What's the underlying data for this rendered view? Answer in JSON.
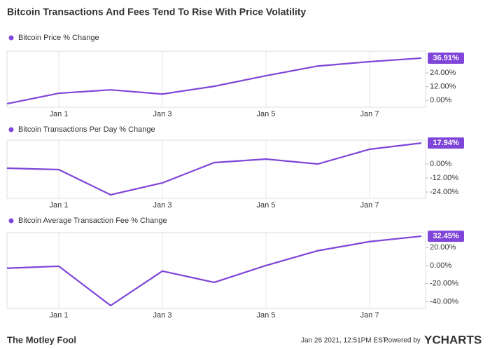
{
  "title": "Bitcoin Transactions And Fees Tend To Rise With Price Volatility",
  "chart_data": [
    {
      "type": "line",
      "categories": [
        null,
        "Jan 1",
        null,
        "Jan 3",
        null,
        "Jan 5",
        null,
        "Jan 7",
        null
      ],
      "series": [
        {
          "name": "Bitcoin Price % Change",
          "color": "#7f45d8",
          "values": [
            -3,
            6.2,
            9.2,
            5.5,
            12.3,
            21.5,
            30,
            33.8,
            36.91
          ],
          "value_labels": [
            null,
            null,
            null,
            null,
            null,
            null,
            null,
            null,
            "36.91%"
          ]
        }
      ],
      "ylim": [
        -6,
        43
      ],
      "yticks": [
        {
          "value": 0,
          "label": "0.00%"
        },
        {
          "value": 12,
          "label": "12.00%"
        },
        {
          "value": 24,
          "label": "24.00%"
        }
      ]
    },
    {
      "type": "line",
      "categories": [
        null,
        "Jan 1",
        null,
        "Jan 3",
        null,
        "Jan 5",
        null,
        "Jan 7",
        null
      ],
      "series": [
        {
          "name": "Bitcoin Transactions Per Day % Change",
          "color": "#7f45d8",
          "values": [
            -3.6,
            -4.8,
            -26.4,
            -16.2,
            1.2,
            4.2,
            0,
            12.6,
            17.94
          ],
          "value_labels": [
            null,
            null,
            null,
            null,
            null,
            null,
            null,
            null,
            "17.94%"
          ]
        }
      ],
      "ylim": [
        -29.4,
        20.4
      ],
      "yticks": [
        {
          "value": 0,
          "label": "0.00%"
        },
        {
          "value": -12,
          "label": "-12.00%"
        },
        {
          "value": -24,
          "label": "-24.00%"
        }
      ]
    },
    {
      "type": "line",
      "categories": [
        null,
        "Jan 1",
        null,
        "Jan 3",
        null,
        "Jan 5",
        null,
        "Jan 7",
        null
      ],
      "series": [
        {
          "name": "Bitcoin Average Transaction Fee % Change",
          "color": "#7f45d8",
          "values": [
            -3,
            -0.8,
            -44.4,
            -6.2,
            -18.7,
            0,
            16.4,
            26.5,
            32.45
          ],
          "value_labels": [
            null,
            null,
            null,
            null,
            null,
            null,
            null,
            null,
            "32.45%"
          ]
        }
      ],
      "ylim": [
        -47.5,
        36.4
      ],
      "yticks": [
        {
          "value": 20,
          "label": "20.00%"
        },
        {
          "value": 0,
          "label": "0.00%"
        },
        {
          "value": -20,
          "label": "-20.00%"
        },
        {
          "value": -40,
          "label": "-40.00%"
        }
      ]
    }
  ],
  "footer": {
    "brand": "The Motley Fool",
    "timestamp": "Jan 26 2021, 12:51PM EST.",
    "powered_by": "Powered by",
    "provider": "YCHARTS"
  }
}
